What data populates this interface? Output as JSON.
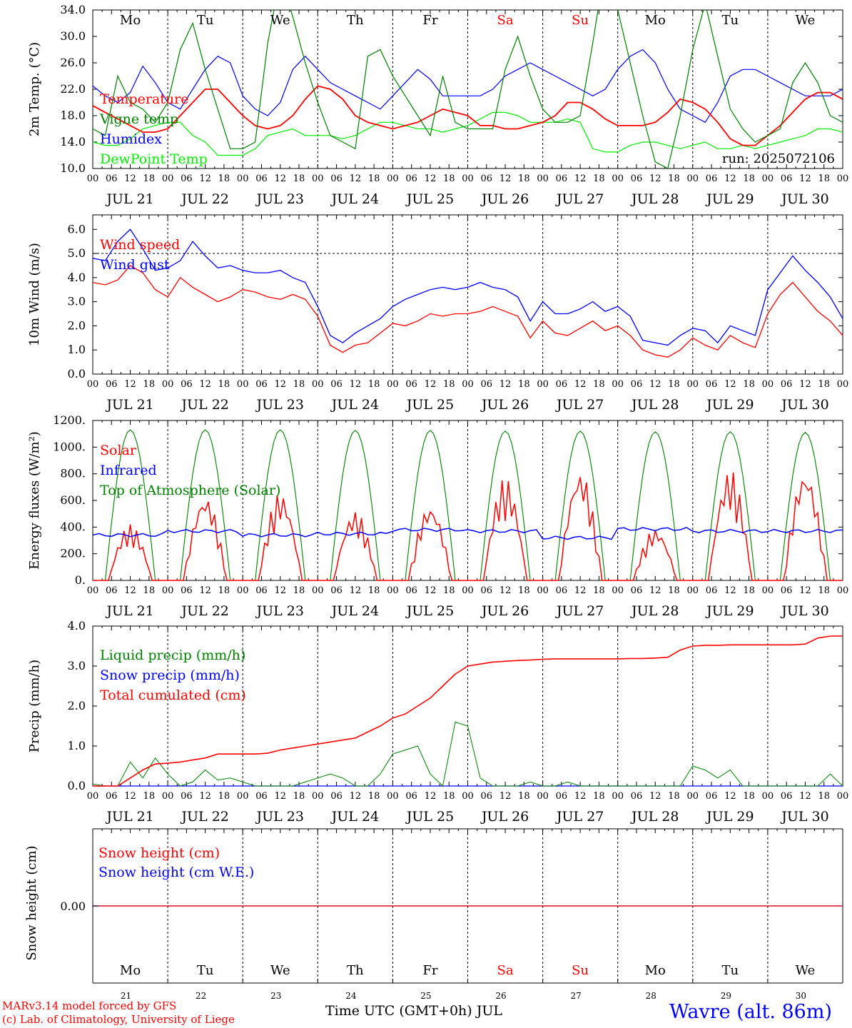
{
  "chart_data": [
    {
      "type": "line",
      "ylabel": "2m Temp. (°C)",
      "ylim": [
        10,
        34
      ],
      "y_ticks": [
        "10.0",
        "14.0",
        "18.0",
        "22.0",
        "26.0",
        "30.0",
        "34.0"
      ],
      "x": [
        0,
        4,
        8,
        12,
        16,
        20,
        24,
        28,
        32,
        36,
        40,
        44,
        48,
        52,
        56,
        60,
        64,
        68,
        72,
        76,
        80,
        84,
        88,
        92,
        96,
        100,
        104,
        108,
        112,
        116,
        120,
        124,
        128,
        132,
        136,
        140,
        144,
        148,
        152,
        156,
        160,
        164,
        168,
        172,
        176,
        180,
        184,
        188,
        192,
        196,
        200,
        204,
        208,
        212,
        216,
        220,
        224,
        228,
        232,
        236,
        240
      ],
      "series": [
        {
          "name": "Temperature",
          "color": "#ff0000",
          "values": [
            19.5,
            18.5,
            17.5,
            16.5,
            15.5,
            15.5,
            16,
            18,
            20,
            22,
            22,
            20,
            18,
            16.5,
            16,
            16.5,
            18,
            20.5,
            22.5,
            22,
            20.5,
            18,
            17,
            16.5,
            16,
            16.5,
            17,
            18,
            19,
            18.5,
            18,
            16.5,
            16.5,
            16,
            16,
            16.5,
            17,
            18,
            20,
            20,
            19,
            17.5,
            16.5,
            16.5,
            16.5,
            17,
            18.5,
            20.5,
            20,
            19,
            17,
            14.5,
            13.5,
            13.5,
            15,
            16.5,
            18.5,
            20.5,
            21.5,
            21.5,
            20.5
          ]
        },
        {
          "name": "Vigne temp",
          "color": "#008000",
          "values": [
            16,
            15,
            24,
            20,
            19,
            17,
            20,
            28,
            32,
            25,
            19,
            13,
            13,
            14,
            29,
            39,
            33,
            26,
            20,
            15,
            14,
            13,
            27,
            28,
            24,
            21,
            18,
            15,
            24,
            17,
            16,
            16,
            16,
            25,
            30,
            24,
            19,
            17,
            17,
            18,
            29,
            41,
            34,
            26,
            18,
            11,
            10,
            18,
            28,
            35,
            27,
            19,
            16,
            14,
            15,
            16,
            23,
            26,
            23,
            18,
            17
          ]
        },
        {
          "name": "Humidex",
          "color": "#0000ff",
          "values": [
            22.5,
            21,
            20,
            21.5,
            25.5,
            23,
            20,
            19,
            22,
            25,
            27,
            26,
            21,
            19,
            18,
            20,
            25,
            27,
            25,
            23,
            22,
            21,
            20,
            19,
            21,
            23,
            25,
            23.5,
            21,
            21,
            21,
            21,
            22,
            24,
            25,
            26,
            25,
            24,
            23,
            22,
            21,
            22,
            25,
            27,
            28,
            26,
            22,
            19,
            18,
            17,
            20,
            24,
            25,
            25,
            24,
            23,
            22,
            21,
            21,
            21,
            22
          ]
        },
        {
          "name": "DewPoint Temp",
          "color": "#00ee00",
          "values": [
            14,
            13.5,
            13.5,
            14.5,
            16,
            16.5,
            17,
            17,
            15,
            14,
            12,
            12,
            12,
            13,
            15,
            15.5,
            16,
            15,
            15,
            15,
            14.5,
            15,
            16,
            17,
            17,
            16.5,
            16,
            16,
            15.5,
            16,
            16.5,
            17.5,
            18.5,
            18.5,
            18,
            17,
            17,
            17,
            17.5,
            17,
            13,
            12.5,
            12.5,
            13.5,
            14,
            14,
            13.5,
            13,
            13.5,
            14,
            13,
            13,
            13.5,
            13,
            13.5,
            14,
            14.5,
            15,
            16,
            16,
            15.5
          ]
        }
      ],
      "annotation": "run: 2025072106"
    },
    {
      "type": "line",
      "ylabel": "10m Wind (m/s)",
      "ylim": [
        0,
        6.6
      ],
      "y_ticks": [
        "0.0",
        "1.0",
        "2.0",
        "3.0",
        "4.0",
        "5.0",
        "6.0"
      ],
      "reference_line": 5.0,
      "x": [
        0,
        4,
        8,
        12,
        16,
        20,
        24,
        28,
        32,
        36,
        40,
        44,
        48,
        52,
        56,
        60,
        64,
        68,
        72,
        76,
        80,
        84,
        88,
        92,
        96,
        100,
        104,
        108,
        112,
        116,
        120,
        124,
        128,
        132,
        136,
        140,
        144,
        148,
        152,
        156,
        160,
        164,
        168,
        172,
        176,
        180,
        184,
        188,
        192,
        196,
        200,
        204,
        208,
        212,
        216,
        220,
        224,
        228,
        232,
        236,
        240
      ],
      "series": [
        {
          "name": "Wind speed",
          "color": "#ff0000",
          "values": [
            3.8,
            3.7,
            3.9,
            4.5,
            4.2,
            3.5,
            3.2,
            4.0,
            3.6,
            3.3,
            3.0,
            3.2,
            3.5,
            3.4,
            3.2,
            3.1,
            3.3,
            3.1,
            2.4,
            1.2,
            0.9,
            1.2,
            1.3,
            1.7,
            2.1,
            2.0,
            2.2,
            2.5,
            2.4,
            2.5,
            2.5,
            2.6,
            2.8,
            2.6,
            2.4,
            1.5,
            2.2,
            1.7,
            1.6,
            1.9,
            2.2,
            1.8,
            2.0,
            1.6,
            1.0,
            0.8,
            0.7,
            1.0,
            1.5,
            1.2,
            1.0,
            1.6,
            1.3,
            1.1,
            2.5,
            3.3,
            3.8,
            3.2,
            2.6,
            2.2,
            1.6
          ]
        },
        {
          "name": "Wind gust",
          "color": "#0000ff",
          "values": [
            4.8,
            4.7,
            5.5,
            6.0,
            5.2,
            4.3,
            4.4,
            4.7,
            5.5,
            4.9,
            4.4,
            4.5,
            4.3,
            4.2,
            4.2,
            4.3,
            4.0,
            3.8,
            2.8,
            1.6,
            1.3,
            1.7,
            2.0,
            2.3,
            2.8,
            3.1,
            3.3,
            3.5,
            3.6,
            3.5,
            3.6,
            3.8,
            3.6,
            3.5,
            3.2,
            2.2,
            3.0,
            2.5,
            2.5,
            2.7,
            3.0,
            2.6,
            2.8,
            2.4,
            1.4,
            1.3,
            1.2,
            1.6,
            1.9,
            1.8,
            1.3,
            2.0,
            1.8,
            1.6,
            3.5,
            4.2,
            4.9,
            4.3,
            3.8,
            3.2,
            2.3
          ]
        }
      ]
    },
    {
      "type": "line",
      "ylabel": "Energy fluxes (W/m²)",
      "ylim": [
        0,
        1200
      ],
      "y_ticks": [
        "0.",
        "200.",
        "400.",
        "600.",
        "800.",
        "1000.",
        "1200."
      ],
      "series": [
        {
          "name": "Solar",
          "color": "#ff0000",
          "day_peaks": [
            420,
            640,
            660,
            520,
            570,
            770,
            830,
            390,
            830,
            830
          ]
        },
        {
          "name": "Infrared",
          "color": "#0000ff",
          "day_values": [
            340,
            370,
            340,
            350,
            380,
            370,
            320,
            385,
            370,
            370
          ]
        },
        {
          "name": "Top of Atmosphere (Solar)",
          "color": "#008000",
          "day_peaks": [
            1130,
            1130,
            1130,
            1125,
            1125,
            1120,
            1120,
            1115,
            1115,
            1110
          ]
        }
      ]
    },
    {
      "type": "line",
      "ylabel": "Precip (mm/h)",
      "ylim": [
        0,
        4.0
      ],
      "y_ticks": [
        "0.0",
        "1.0",
        "2.0",
        "3.0",
        "4.0"
      ],
      "x": [
        0,
        4,
        8,
        12,
        16,
        20,
        24,
        28,
        32,
        36,
        40,
        44,
        48,
        52,
        56,
        60,
        64,
        68,
        72,
        76,
        80,
        84,
        88,
        92,
        96,
        100,
        104,
        108,
        112,
        116,
        120,
        124,
        128,
        132,
        136,
        140,
        144,
        148,
        152,
        156,
        160,
        164,
        168,
        172,
        176,
        180,
        184,
        188,
        192,
        196,
        200,
        204,
        208,
        212,
        216,
        220,
        224,
        228,
        232,
        236,
        240
      ],
      "series": [
        {
          "name": "Liquid precip (mm/h)",
          "color": "#008000",
          "values": [
            0.05,
            0,
            0,
            0.6,
            0.2,
            0.7,
            0.3,
            0,
            0.1,
            0.4,
            0.15,
            0.2,
            0.1,
            0,
            0,
            0,
            0,
            0.1,
            0.2,
            0.3,
            0.2,
            0,
            0,
            0.3,
            0.8,
            0.9,
            1.0,
            0.3,
            0,
            1.6,
            1.5,
            0.2,
            0,
            0,
            0,
            0.1,
            0,
            0,
            0.1,
            0,
            0,
            0,
            0,
            0,
            0,
            0,
            0,
            0,
            0.5,
            0.4,
            0.2,
            0.4,
            0,
            0,
            0,
            0,
            0,
            0,
            0,
            0.3,
            0
          ]
        },
        {
          "name": "Snow precip (mm/h)",
          "color": "#0000ff",
          "values": [
            0,
            0,
            0,
            0,
            0,
            0,
            0,
            0,
            0,
            0,
            0,
            0,
            0,
            0,
            0,
            0,
            0,
            0,
            0,
            0,
            0,
            0,
            0,
            0,
            0,
            0,
            0,
            0,
            0,
            0,
            0,
            0,
            0,
            0,
            0,
            0,
            0,
            0,
            0,
            0,
            0,
            0,
            0,
            0,
            0,
            0,
            0,
            0,
            0,
            0,
            0,
            0,
            0,
            0,
            0,
            0,
            0,
            0,
            0,
            0,
            0
          ]
        },
        {
          "name": "Total cumulated (cm)",
          "color": "#ff0000",
          "values": [
            0,
            0,
            0,
            0.2,
            0.4,
            0.55,
            0.57,
            0.6,
            0.65,
            0.7,
            0.8,
            0.8,
            0.8,
            0.8,
            0.82,
            0.9,
            0.95,
            1.0,
            1.05,
            1.1,
            1.15,
            1.2,
            1.35,
            1.5,
            1.7,
            1.8,
            2.0,
            2.2,
            2.5,
            2.8,
            3.0,
            3.05,
            3.1,
            3.12,
            3.14,
            3.15,
            3.17,
            3.18,
            3.18,
            3.18,
            3.18,
            3.18,
            3.18,
            3.19,
            3.19,
            3.2,
            3.22,
            3.4,
            3.5,
            3.52,
            3.52,
            3.53,
            3.53,
            3.53,
            3.53,
            3.53,
            3.53,
            3.55,
            3.7,
            3.75,
            3.75
          ]
        }
      ]
    },
    {
      "type": "line",
      "ylabel": "Snow height (cm)",
      "y_ticks": [
        "0.00"
      ],
      "series": [
        {
          "name": "Snow height (cm)",
          "color": "#ff0000",
          "values": [
            0,
            0
          ]
        },
        {
          "name": "Snow height (cm W.E.)",
          "color": "#0000ff",
          "values": [
            0,
            0
          ]
        }
      ]
    }
  ],
  "day_abbr": [
    "Mo",
    "Tu",
    "We",
    "Th",
    "Fr",
    "Sa",
    "Su",
    "Mo",
    "Tu",
    "We"
  ],
  "day_abbr_colors": [
    "#000000",
    "#000000",
    "#000000",
    "#000000",
    "#000000",
    "#ff0000",
    "#ff0000",
    "#000000",
    "#000000",
    "#000000"
  ],
  "date_labels": [
    "JUL 21",
    "JUL 22",
    "JUL 23",
    "JUL 24",
    "JUL 25",
    "JUL 26",
    "JUL 27",
    "JUL 28",
    "JUL 29",
    "JUL 30"
  ],
  "day_numbers": [
    "21",
    "22",
    "23",
    "24",
    "25",
    "26",
    "27",
    "28",
    "29",
    "30"
  ],
  "hour_ticks": [
    "00",
    "06",
    "12",
    "18"
  ],
  "x_title": "Time UTC (GMT+0h) JUL",
  "footer": {
    "model_line": "MARv3.14 model forced by GFS",
    "credit_line": "(c) Lab. of Climatology, University of Liege",
    "location": "Wavre (alt. 86m)"
  }
}
